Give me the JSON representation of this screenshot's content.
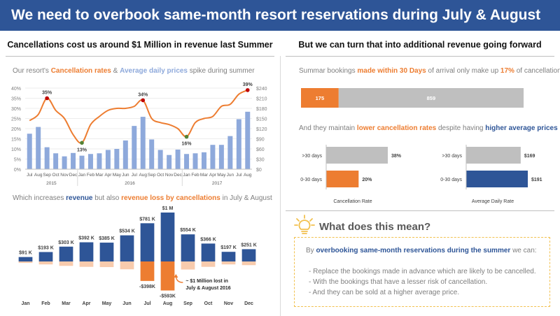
{
  "title": "We need to overbook same-month resort reservations during July & August",
  "left_heading": "Cancellations cost us around $1 Million in revenue last Summer",
  "right_heading": "But we can turn that into additional revenue going forward",
  "chart1_caption": {
    "p1": "Our resort's ",
    "hl1": "Cancellation rates",
    "p2": " & ",
    "hl2": "Average daily prices",
    "p3": " spike during summer"
  },
  "chart2_caption": {
    "p1": "Which increases ",
    "hl1": "revenue",
    "p2": " but also ",
    "hl2": "revenue loss by cancellations",
    "p3": " in July & August"
  },
  "chart3_caption": {
    "p1": "Summar bookings ",
    "hl1": "made within 30 Days",
    "p2": " of arrival only make up ",
    "hl2": "17%",
    "p3": " of cancellations"
  },
  "chart4_caption": {
    "p1": "And they maintain ",
    "hl1": "lower cancellation rates",
    "p2": " despite having ",
    "hl2": "higher average prices"
  },
  "tip": {
    "title": "What does this mean?",
    "lead_p1": "By ",
    "lead_hl": "overbooking same-month reservations during the summer",
    "lead_p2": " we can:",
    "items": [
      "- Replace the bookings made in advance which are likely to be cancelled.",
      "- With the bookings that have a lesser risk of cancellation.",
      "- And they can be sold at a higher average price."
    ]
  },
  "colors": {
    "navy": "#2E5597",
    "orange": "#ED7D31",
    "light_blue": "#8EA9DB",
    "peach": "#F8CBAD",
    "gray_bar": "#BFBFBF",
    "red_marker": "#C00000",
    "green_marker": "#548235"
  },
  "chart_data": [
    {
      "type": "bar",
      "combo": "bar+line",
      "months": [
        "Jul",
        "Aug",
        "Sep",
        "Oct",
        "Nov",
        "Dec",
        "Jan",
        "Feb",
        "Mar",
        "Apr",
        "May",
        "Jun",
        "Jul",
        "Aug",
        "Sep",
        "Oct",
        "Nov",
        "Dec",
        "Jan",
        "Feb",
        "Mar",
        "Apr",
        "May",
        "Jun",
        "Jul",
        "Aug"
      ],
      "years": [
        {
          "label": "2015",
          "start": 0,
          "end": 5
        },
        {
          "label": "2016",
          "start": 6,
          "end": 17
        },
        {
          "label": "2017",
          "start": 18,
          "end": 25
        }
      ],
      "series": [
        {
          "name": "Average daily prices",
          "type": "bar",
          "axis": "right",
          "values": [
            105,
            125,
            65,
            47,
            38,
            48,
            40,
            45,
            47,
            57,
            60,
            85,
            128,
            155,
            88,
            57,
            42,
            58,
            45,
            47,
            50,
            72,
            72,
            98,
            148,
            170
          ]
        },
        {
          "name": "Cancellation rates",
          "type": "line",
          "axis": "left",
          "values": [
            24,
            27,
            35,
            29,
            25,
            17,
            13,
            22,
            26,
            29,
            30,
            30,
            31,
            34,
            25,
            23,
            22,
            20,
            16,
            23,
            25,
            26,
            31,
            32,
            37,
            39
          ]
        }
      ],
      "point_labels": [
        {
          "index": 2,
          "text": "35%",
          "marker": "red"
        },
        {
          "index": 6,
          "text": "13%",
          "marker": "green"
        },
        {
          "index": 13,
          "text": "34%",
          "marker": "red"
        },
        {
          "index": 18,
          "text": "16%",
          "marker": "green"
        },
        {
          "index": 25,
          "text": "39%",
          "marker": "red"
        }
      ],
      "y_left_ticks": [
        "0%",
        "5%",
        "10%",
        "15%",
        "20%",
        "25%",
        "30%",
        "35%",
        "40%"
      ],
      "y_right_ticks": [
        "$0",
        "$30",
        "$60",
        "$90",
        "$120",
        "$150",
        "$180",
        "$210",
        "$240"
      ],
      "ylim_left": [
        0,
        40
      ],
      "ylim_right": [
        0,
        240
      ]
    },
    {
      "type": "bar",
      "categories": [
        "Jan",
        "Feb",
        "Mar",
        "Apr",
        "May",
        "Jun",
        "Jul",
        "Aug",
        "Sep",
        "Oct",
        "Nov",
        "Dec"
      ],
      "series": [
        {
          "name": "revenue",
          "values": [
            91,
            193,
            303,
            392,
            385,
            534,
            781,
            1000,
            554,
            366,
            197,
            251
          ]
        },
        {
          "name": "revenue loss by cancellations",
          "values": [
            -30,
            -60,
            -90,
            -110,
            -115,
            -160,
            -398,
            -593,
            -165,
            -110,
            -60,
            -75
          ]
        }
      ],
      "value_labels": [
        "$91 K",
        "$193 K",
        "$303 K",
        "$392 K",
        "$385 K",
        "$534 K",
        "$781 K",
        "$1 M",
        "$554 K",
        "$366 K",
        "$197 K",
        "$251 K"
      ],
      "loss_labels": [
        {
          "index": 6,
          "text": "-$398K"
        },
        {
          "index": 7,
          "text": "-$593K"
        }
      ],
      "annotation": [
        "~ $1 Million lost in",
        "July & August 2016"
      ]
    },
    {
      "type": "bar",
      "orientation": "stacked-horizontal",
      "segments": [
        {
          "label": "175",
          "value": 175
        },
        {
          "label": "859",
          "value": 859
        }
      ]
    },
    {
      "type": "bar",
      "orientation": "horizontal",
      "title": "Cancellation Rate",
      "categories": [
        ">30 days",
        "0-30 days"
      ],
      "values": [
        38,
        20
      ],
      "value_labels": [
        "38%",
        "20%"
      ]
    },
    {
      "type": "bar",
      "orientation": "horizontal",
      "title": "Average Daily Rate",
      "categories": [
        ">30 days",
        "0-30 days"
      ],
      "values": [
        169,
        191
      ],
      "value_labels": [
        "$169",
        "$191"
      ]
    }
  ]
}
